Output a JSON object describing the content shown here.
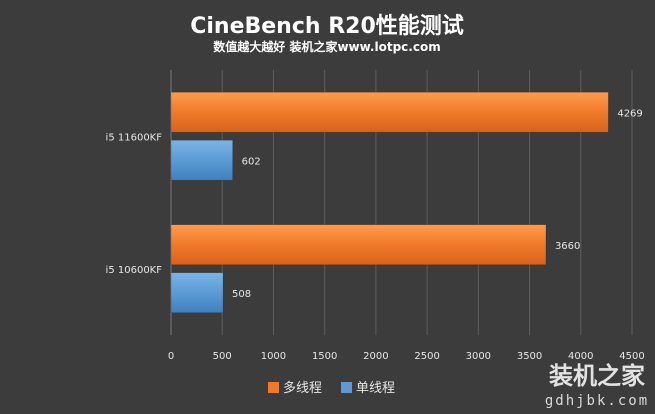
{
  "chart_data": {
    "type": "bar",
    "orientation": "horizontal",
    "title": "CineBench R20性能测试",
    "subtitle": "数值越大越好 装机之家www.lotpc.com",
    "categories": [
      "i5 11600KF",
      "i5 10600KF"
    ],
    "series": [
      {
        "name": "多线程",
        "color": "#f07a2a",
        "values": [
          4269,
          3660
        ]
      },
      {
        "name": "单线程",
        "color": "#5b9bd5",
        "values": [
          602,
          508
        ]
      }
    ],
    "xlim": [
      0,
      4500
    ],
    "xticks": [
      0,
      500,
      1000,
      1500,
      2000,
      2500,
      3000,
      3500,
      4000,
      4500
    ],
    "grid": true,
    "legend_position": "bottom"
  },
  "watermark": {
    "text": "装机之家",
    "url": "gdhjbk.com"
  }
}
